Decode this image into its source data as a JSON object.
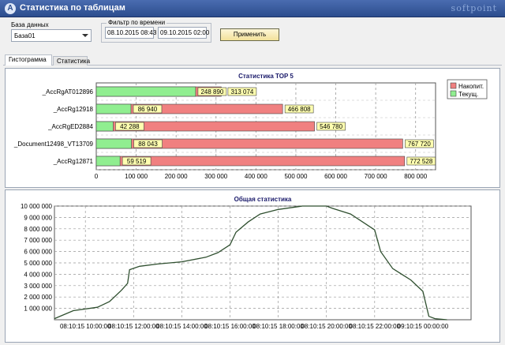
{
  "window": {
    "title": "Статистика по таблицам",
    "brand": "softpoint",
    "app_icon": "А"
  },
  "filters": {
    "db_label": "База данных",
    "db_value": "База01",
    "time_filter_label": "Фильтр по времени",
    "date_from": "08.10.2015 08:43",
    "separator": "-",
    "date_to": "09.10.2015 02:00",
    "apply_label": "Применить"
  },
  "tabs": [
    {
      "label": "Гистограмма",
      "active": true
    },
    {
      "label": "Статистика",
      "active": false
    }
  ],
  "top5": {
    "chart_data": {
      "type": "bar",
      "title": "Статистика TOP 5",
      "categories": [
        "_AccRgAT012896",
        "_AccRg12918",
        "_AccRgED2884",
        "_Document12498_VT13709",
        "_AccRg12871"
      ],
      "series": [
        {
          "name": "Накопит.",
          "color": "#f08080",
          "values": [
            313074,
            466808,
            546780,
            767720,
            772528
          ]
        },
        {
          "name": "Текущ.",
          "color": "#90ee90",
          "values": [
            248890,
            86940,
            42288,
            88043,
            59519
          ]
        }
      ],
      "xlim": [
        0,
        850000
      ],
      "x_ticks": [
        0,
        100000,
        200000,
        300000,
        400000,
        500000,
        600000,
        700000,
        800000
      ],
      "x_tick_labels": [
        "0",
        "100 000",
        "200 000",
        "300 000",
        "400 000",
        "500 000",
        "600 000",
        "700 000",
        "800 000"
      ],
      "current_labels": [
        "248 890",
        "86 940",
        "42 288",
        "88 043",
        "59 519"
      ],
      "cumulative_labels": [
        "313 074",
        "466 808",
        "546 780",
        "767 720",
        "772 528"
      ],
      "legend_position": "top-right",
      "grid": true
    }
  },
  "general": {
    "chart_data": {
      "type": "line",
      "title": "Общая статистика",
      "color": "#2f4f2f",
      "ylim": [
        0,
        10000000
      ],
      "y_ticks": [
        1000000,
        2000000,
        3000000,
        4000000,
        5000000,
        6000000,
        7000000,
        8000000,
        9000000,
        10000000
      ],
      "y_tick_labels": [
        "1 000 000",
        "2 000 000",
        "3 000 000",
        "4 000 000",
        "5 000 000",
        "6 000 000",
        "7 000 000",
        "8 000 000",
        "9 000 000",
        "10 000 000"
      ],
      "x_range": [
        "08.10.2015 08:43",
        "09.10.2015 02:00"
      ],
      "x_ticks": [
        "08.10.2015 10:00",
        "08.10.2015 12:00",
        "08.10.2015 14:00",
        "08.10.2015 16:00",
        "08.10.2015 18:00",
        "08.10.2015 20:00",
        "08.10.2015 22:00",
        "09.10.2015 00:00"
      ],
      "x_tick_labels": [
        "08:10:15 10:00:00",
        "08:10:15 12:00:00",
        "08:10:15 14:00:00",
        "08:10:15 16:00:00",
        "08:10:15 18:00:00",
        "08:10:15 20:00:00",
        "08:10:15 22:00:00",
        "09:10:15 00:00:00"
      ],
      "x": [
        "08.10.2015 08:43",
        "08.10.2015 09:30",
        "08.10.2015 10:30",
        "08.10.2015 11:00",
        "08.10.2015 11:30",
        "08.10.2015 11:45",
        "08.10.2015 11:50",
        "08.10.2015 12:15",
        "08.10.2015 13:00",
        "08.10.2015 14:00",
        "08.10.2015 15:00",
        "08.10.2015 15:30",
        "08.10.2015 16:00",
        "08.10.2015 16:15",
        "08.10.2015 16:45",
        "08.10.2015 17:15",
        "08.10.2015 18:00",
        "08.10.2015 19:00",
        "08.10.2015 20:00",
        "08.10.2015 20:15",
        "08.10.2015 21:00",
        "08.10.2015 22:00",
        "08.10.2015 22:15",
        "08.10.2015 22:45",
        "08.10.2015 23:30",
        "09.10.2015 00:00",
        "09.10.2015 00:15",
        "09.10.2015 00:30",
        "09.10.2015 01:00"
      ],
      "y": [
        100000,
        800000,
        1100000,
        1600000,
        2600000,
        3200000,
        4400000,
        4700000,
        4900000,
        5100000,
        5500000,
        5900000,
        6600000,
        7700000,
        8600000,
        9300000,
        9700000,
        10000000,
        10000000,
        9800000,
        9300000,
        7900000,
        6000000,
        4500000,
        3500000,
        2500000,
        300000,
        100000,
        0
      ],
      "grid": true
    }
  }
}
